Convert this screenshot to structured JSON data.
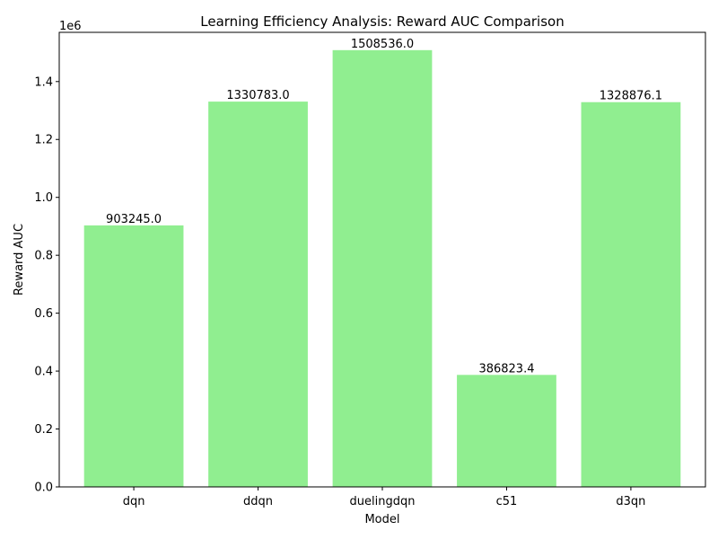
{
  "chart_data": {
    "type": "bar",
    "title": "Learning Efficiency Analysis: Reward AUC Comparison",
    "xlabel": "Model",
    "ylabel": "Reward AUC",
    "y_multiplier_label": "1e6",
    "categories": [
      "dqn",
      "ddqn",
      "duelingdqn",
      "c51",
      "d3qn"
    ],
    "values": [
      903245.0,
      1330783.0,
      1508536.0,
      386823.4,
      1328876.1
    ],
    "value_labels": [
      "903245.0",
      "1330783.0",
      "1508536.0",
      "386823.4",
      "1328876.1"
    ],
    "ylim": [
      0,
      1.57
    ],
    "y_ticks": [
      0.0,
      0.2,
      0.4,
      0.6,
      0.8,
      1.0,
      1.2,
      1.4
    ],
    "y_tick_labels": [
      "0.0",
      "0.2",
      "0.4",
      "0.6",
      "0.8",
      "1.0",
      "1.2",
      "1.4"
    ],
    "bar_color": "#90ee90",
    "grid": false,
    "legend": "none"
  }
}
